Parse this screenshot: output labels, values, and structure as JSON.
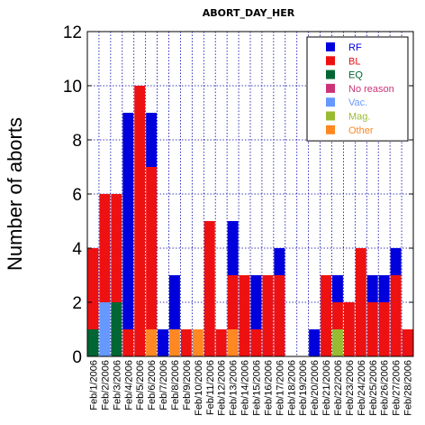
{
  "chart_data": {
    "type": "bar",
    "stacked": true,
    "title": "ABORT_DAY_HER",
    "xlabel": "",
    "ylabel": "Number of aborts",
    "ylim": [
      0,
      12
    ],
    "yticks": [
      0,
      2,
      4,
      6,
      8,
      10,
      12
    ],
    "grid": true,
    "legend_position": "top-right",
    "categories": [
      "Feb/1/2006",
      "Feb/2/2006",
      "Feb/3/2006",
      "Feb/4/2006",
      "Feb/5/2006",
      "Feb/6/2006",
      "Feb/7/2006",
      "Feb/8/2006",
      "Feb/9/2006",
      "Feb/10/2006",
      "Feb/11/2006",
      "Feb/12/2006",
      "Feb/13/2006",
      "Feb/14/2006",
      "Feb/15/2006",
      "Feb/16/2006",
      "Feb/17/2006",
      "Feb/18/2006",
      "Feb/19/2006",
      "Feb/20/2006",
      "Feb/21/2006",
      "Feb/22/2006",
      "Feb/23/2006",
      "Feb/24/2006",
      "Feb/25/2006",
      "Feb/26/2006",
      "Feb/27/2006",
      "Feb/28/2006"
    ],
    "series": [
      {
        "name": "EQ",
        "color": "#006633",
        "values": [
          1,
          0,
          2,
          0,
          0,
          0,
          0,
          0,
          0,
          0,
          0,
          0,
          0,
          0,
          0,
          0,
          0,
          0,
          0,
          0,
          0,
          0,
          0,
          0,
          0,
          0,
          0,
          0
        ]
      },
      {
        "name": "No reason",
        "color": "#cc3377",
        "values": [
          0,
          0,
          0,
          0,
          0,
          0,
          0,
          0,
          0,
          0,
          0,
          0,
          0,
          0,
          0,
          0,
          0,
          0,
          0,
          0,
          0,
          0,
          0,
          0,
          0,
          0,
          0,
          0
        ]
      },
      {
        "name": "Vac.",
        "color": "#6699ff",
        "values": [
          0,
          2,
          0,
          0,
          0,
          0,
          0,
          0,
          0,
          0,
          0,
          0,
          0,
          0,
          0,
          0,
          0,
          0,
          0,
          0,
          0,
          0,
          0,
          0,
          0,
          0,
          0,
          0
        ]
      },
      {
        "name": "Mag.",
        "color": "#99bb33",
        "values": [
          0,
          0,
          0,
          0,
          0,
          0,
          0,
          0,
          0,
          0,
          0,
          0,
          0,
          0,
          0,
          0,
          0,
          0,
          0,
          0,
          0,
          1,
          0,
          0,
          0,
          0,
          0,
          0
        ]
      },
      {
        "name": "Other",
        "color": "#ff8822",
        "values": [
          0,
          0,
          0,
          0,
          0,
          1,
          0,
          1,
          0,
          1,
          0,
          0,
          1,
          0,
          0,
          0,
          0,
          0,
          0,
          0,
          0,
          0,
          0,
          0,
          0,
          0,
          0,
          0
        ]
      },
      {
        "name": "BL",
        "color": "#ee1111",
        "values": [
          3,
          4,
          4,
          1,
          10,
          6,
          0,
          0,
          1,
          0,
          5,
          1,
          2,
          3,
          1,
          3,
          3,
          0,
          0,
          0,
          3,
          1,
          2,
          4,
          2,
          2,
          3,
          1
        ]
      },
      {
        "name": "RF",
        "color": "#0000dd",
        "values": [
          0,
          0,
          0,
          8,
          0,
          2,
          1,
          2,
          0,
          0,
          0,
          0,
          2,
          0,
          2,
          0,
          1,
          0,
          0,
          1,
          0,
          1,
          0,
          0,
          1,
          1,
          1,
          0
        ]
      }
    ],
    "legend": [
      {
        "name": "RF",
        "color": "#0000dd"
      },
      {
        "name": "BL",
        "color": "#ee1111"
      },
      {
        "name": "EQ",
        "color": "#006633"
      },
      {
        "name": "No reason",
        "color": "#cc3377"
      },
      {
        "name": "Vac.",
        "color": "#6699ff"
      },
      {
        "name": "Mag.",
        "color": "#99bb33"
      },
      {
        "name": "Other",
        "color": "#ff8822"
      }
    ]
  }
}
